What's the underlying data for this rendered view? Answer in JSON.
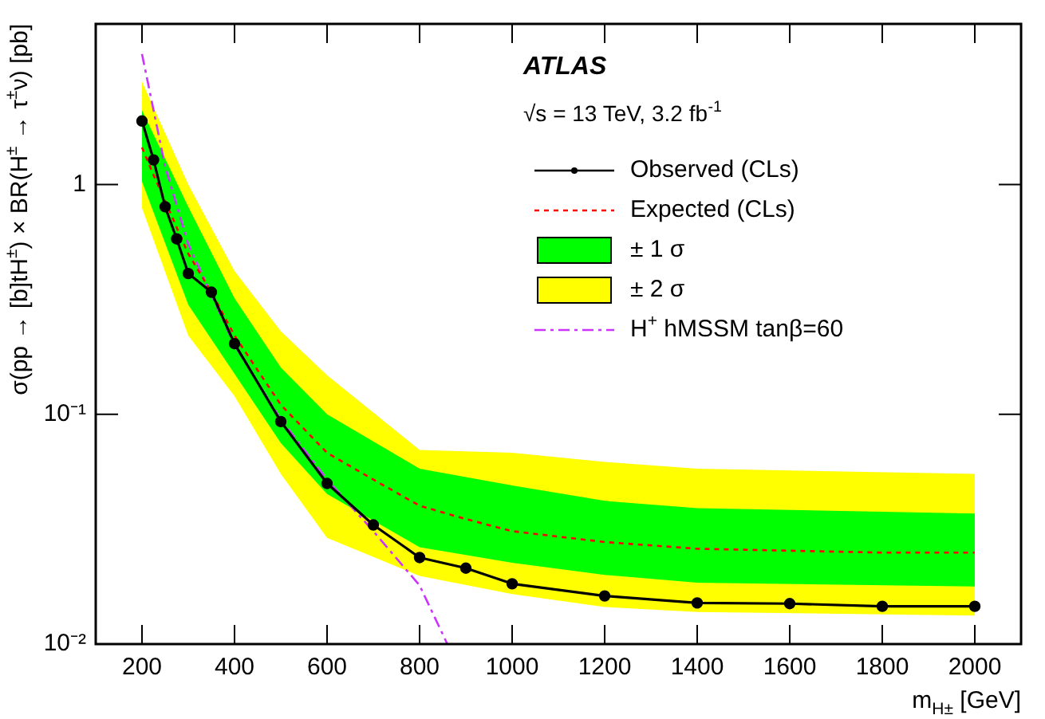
{
  "chart_data": {
    "type": "line",
    "xlabel": "m$_{H±}$ [GeV]",
    "ylabel": "σ(pp → [b]tH$^{±}$) × BR(H$^{±}$ → τ$^{±}$ν) [pb]",
    "annotations": [
      "ATLAS",
      "√s = 13 TeV, 3.2 fb$^{-1}$"
    ],
    "x": [
      200,
      225,
      250,
      275,
      300,
      350,
      400,
      500,
      600,
      700,
      800,
      900,
      1000,
      1200,
      1400,
      1600,
      1800,
      2000
    ],
    "series": [
      {
        "name": "Observed (CLs)",
        "color": "#000000",
        "marker": "circle",
        "line_style": "solid",
        "values": [
          1.89,
          1.28,
          0.8,
          0.58,
          0.41,
          0.34,
          0.203,
          0.093,
          0.05,
          0.033,
          0.0238,
          0.0214,
          0.0183,
          0.0162,
          0.0151,
          0.015,
          0.0146,
          0.0146
        ]
      },
      {
        "name": "Expected (CLs)",
        "color": "#ff0000",
        "marker": "none",
        "line_style": "dotted",
        "values": [
          1.45,
          1.1,
          0.85,
          0.65,
          0.5,
          0.34,
          0.22,
          0.11,
          0.068,
          0.052,
          0.04,
          0.035,
          0.031,
          0.0278,
          0.026,
          0.0255,
          0.025,
          0.025
        ]
      },
      {
        "name": "± 1 σ",
        "type": "area",
        "color": "#00ff00",
        "x": [
          200,
          300,
          400,
          500,
          600,
          800,
          1000,
          1200,
          1400,
          2000
        ],
        "values": [
          null,
          null,
          null,
          null,
          null,
          null,
          null,
          null,
          null,
          null
        ],
        "upper": [
          2.1,
          0.8,
          0.32,
          0.16,
          0.1,
          0.058,
          0.049,
          0.042,
          0.039,
          0.037
        ],
        "lower": [
          1.03,
          0.3,
          0.15,
          0.075,
          0.045,
          0.0264,
          0.0226,
          0.02,
          0.0185,
          0.0178
        ]
      },
      {
        "name": "± 2 σ",
        "type": "area",
        "color": "#ffff00",
        "x": [
          200,
          300,
          400,
          500,
          600,
          800,
          1000,
          1200,
          1400,
          2000
        ],
        "values": [
          null,
          null,
          null,
          null,
          null,
          null,
          null,
          null,
          null,
          null
        ],
        "upper": [
          2.8,
          1.0,
          0.42,
          0.23,
          0.148,
          0.07,
          0.068,
          0.062,
          0.058,
          0.055
        ],
        "lower": [
          0.79,
          0.22,
          0.12,
          0.055,
          0.029,
          0.0198,
          0.0165,
          0.0145,
          0.0138,
          0.0133
        ]
      },
      {
        "name": "H$^{+}$ hMSSM tanβ=60",
        "color": "#cc33ff",
        "marker": "none",
        "line_style": "dashdot",
        "x": [
          200,
          250,
          300,
          400,
          500,
          600,
          700,
          800,
          860
        ],
        "values": [
          3.7,
          1.2,
          0.55,
          0.2,
          0.095,
          0.052,
          0.031,
          0.018,
          0.01
        ]
      }
    ],
    "xlim": [
      100,
      2100
    ],
    "xticks": [
      200,
      400,
      600,
      800,
      1000,
      1200,
      1400,
      1600,
      1800,
      2000
    ],
    "ylim": [
      0.01,
      5
    ],
    "yticks": [
      {
        "value": 0.01,
        "label": "10⁻²"
      },
      {
        "value": 0.1,
        "label": "10⁻¹"
      },
      {
        "value": 1,
        "label": "1"
      }
    ],
    "log": "y",
    "grid": false,
    "legend": "top right"
  }
}
